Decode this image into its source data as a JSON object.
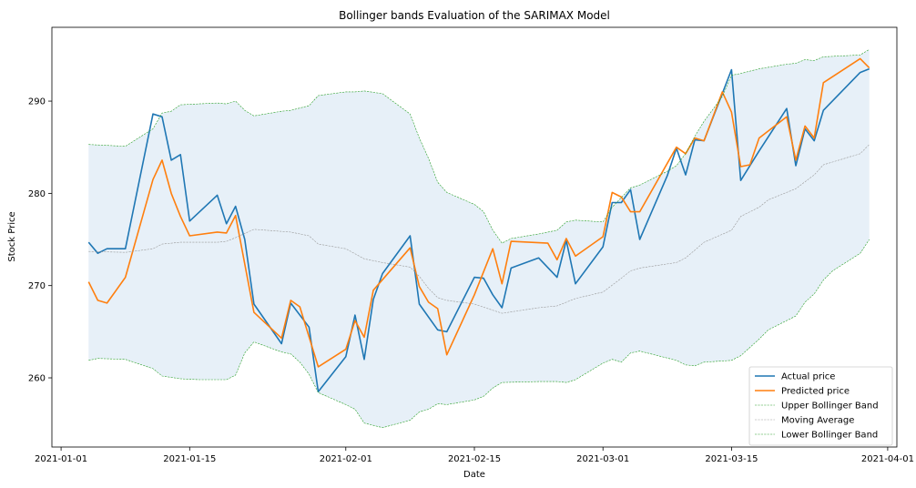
{
  "chart_data": {
    "type": "line",
    "title": "Bollinger bands Evaluation of the SARIMAX  Model",
    "xlabel": "Date",
    "ylabel": "Stock Price",
    "xlim": [
      "2020-12-31",
      "2021-04-02"
    ],
    "ylim": [
      252.5,
      298
    ],
    "x_ticks": [
      {
        "date": "2021-01-01",
        "label": "2021-01-01"
      },
      {
        "date": "2021-01-15",
        "label": "2021-01-15"
      },
      {
        "date": "2021-02-01",
        "label": "2021-02-01"
      },
      {
        "date": "2021-02-15",
        "label": "2021-02-15"
      },
      {
        "date": "2021-03-01",
        "label": "2021-03-01"
      },
      {
        "date": "2021-03-15",
        "label": "2021-03-15"
      },
      {
        "date": "2021-04-01",
        "label": "2021-04-01"
      }
    ],
    "y_ticks": [
      260,
      270,
      280,
      290
    ],
    "grid": false,
    "legend_position": "lower-right",
    "band_fill_color": "#e7f0f8",
    "series": [
      {
        "name": "Actual price",
        "color": "#1f77b4",
        "style": "solid",
        "points": [
          [
            "2021-01-04",
            274.7
          ],
          [
            "2021-01-05",
            273.5
          ],
          [
            "2021-01-06",
            274.0
          ],
          [
            "2021-01-08",
            274.0
          ],
          [
            "2021-01-11",
            288.6
          ],
          [
            "2021-01-12",
            288.3
          ],
          [
            "2021-01-13",
            283.6
          ],
          [
            "2021-01-14",
            284.2
          ],
          [
            "2021-01-15",
            277.0
          ],
          [
            "2021-01-18",
            279.8
          ],
          [
            "2021-01-19",
            276.7
          ],
          [
            "2021-01-20",
            278.6
          ],
          [
            "2021-01-21",
            275.0
          ],
          [
            "2021-01-22",
            268.0
          ],
          [
            "2021-01-25",
            263.7
          ],
          [
            "2021-01-26",
            268.1
          ],
          [
            "2021-01-28",
            265.5
          ],
          [
            "2021-01-29",
            258.5
          ],
          [
            "2021-02-01",
            262.3
          ],
          [
            "2021-02-02",
            266.8
          ],
          [
            "2021-02-03",
            262.0
          ],
          [
            "2021-02-04",
            268.5
          ],
          [
            "2021-02-05",
            271.3
          ],
          [
            "2021-02-08",
            275.4
          ],
          [
            "2021-02-09",
            268.0
          ],
          [
            "2021-02-11",
            265.2
          ],
          [
            "2021-02-12",
            265.0
          ],
          [
            "2021-02-15",
            270.9
          ],
          [
            "2021-02-16",
            270.8
          ],
          [
            "2021-02-17",
            269.0
          ],
          [
            "2021-02-18",
            267.6
          ],
          [
            "2021-02-19",
            271.9
          ],
          [
            "2021-02-22",
            273.0
          ],
          [
            "2021-02-24",
            270.9
          ],
          [
            "2021-02-25",
            274.9
          ],
          [
            "2021-02-26",
            270.2
          ],
          [
            "2021-03-01",
            274.2
          ],
          [
            "2021-03-02",
            279.0
          ],
          [
            "2021-03-03",
            279.0
          ],
          [
            "2021-03-04",
            280.4
          ],
          [
            "2021-03-05",
            275.0
          ],
          [
            "2021-03-08",
            281.9
          ],
          [
            "2021-03-09",
            284.9
          ],
          [
            "2021-03-10",
            282.0
          ],
          [
            "2021-03-11",
            285.8
          ],
          [
            "2021-03-12",
            285.7
          ],
          [
            "2021-03-15",
            293.4
          ],
          [
            "2021-03-16",
            281.4
          ],
          [
            "2021-03-18",
            284.6
          ],
          [
            "2021-03-21",
            289.2
          ],
          [
            "2021-03-22",
            283.0
          ],
          [
            "2021-03-23",
            287.0
          ],
          [
            "2021-03-24",
            285.7
          ],
          [
            "2021-03-25",
            289.0
          ],
          [
            "2021-03-29",
            293.1
          ],
          [
            "2021-03-30",
            293.5
          ]
        ]
      },
      {
        "name": "Predicted price",
        "color": "#ff7f0e",
        "style": "solid",
        "points": [
          [
            "2021-01-04",
            270.4
          ],
          [
            "2021-01-05",
            268.4
          ],
          [
            "2021-01-06",
            268.1
          ],
          [
            "2021-01-08",
            270.9
          ],
          [
            "2021-01-11",
            281.5
          ],
          [
            "2021-01-12",
            283.6
          ],
          [
            "2021-01-13",
            280.0
          ],
          [
            "2021-01-14",
            277.5
          ],
          [
            "2021-01-15",
            275.4
          ],
          [
            "2021-01-18",
            275.8
          ],
          [
            "2021-01-19",
            275.7
          ],
          [
            "2021-01-20",
            277.6
          ],
          [
            "2021-01-22",
            267.1
          ],
          [
            "2021-01-25",
            264.3
          ],
          [
            "2021-01-26",
            268.4
          ],
          [
            "2021-01-27",
            267.7
          ],
          [
            "2021-01-29",
            261.2
          ],
          [
            "2021-02-01",
            263.1
          ],
          [
            "2021-02-02",
            266.2
          ],
          [
            "2021-02-03",
            264.4
          ],
          [
            "2021-02-04",
            269.5
          ],
          [
            "2021-02-08",
            274.1
          ],
          [
            "2021-02-09",
            269.9
          ],
          [
            "2021-02-10",
            268.2
          ],
          [
            "2021-02-11",
            267.5
          ],
          [
            "2021-02-12",
            262.5
          ],
          [
            "2021-02-15",
            269.0
          ],
          [
            "2021-02-17",
            274.0
          ],
          [
            "2021-02-18",
            270.2
          ],
          [
            "2021-02-19",
            274.8
          ],
          [
            "2021-02-23",
            274.6
          ],
          [
            "2021-02-24",
            272.8
          ],
          [
            "2021-02-25",
            275.1
          ],
          [
            "2021-02-26",
            273.2
          ],
          [
            "2021-03-01",
            275.3
          ],
          [
            "2021-03-02",
            280.1
          ],
          [
            "2021-03-03",
            279.6
          ],
          [
            "2021-03-04",
            278.0
          ],
          [
            "2021-03-05",
            278.0
          ],
          [
            "2021-03-09",
            285.0
          ],
          [
            "2021-03-10",
            284.3
          ],
          [
            "2021-03-11",
            286.0
          ],
          [
            "2021-03-12",
            285.7
          ],
          [
            "2021-03-14",
            291.0
          ],
          [
            "2021-03-15",
            288.8
          ],
          [
            "2021-03-16",
            282.9
          ],
          [
            "2021-03-17",
            283.1
          ],
          [
            "2021-03-18",
            286.0
          ],
          [
            "2021-03-21",
            288.3
          ],
          [
            "2021-03-22",
            283.6
          ],
          [
            "2021-03-23",
            287.3
          ],
          [
            "2021-03-24",
            286.0
          ],
          [
            "2021-03-25",
            292.0
          ],
          [
            "2021-03-29",
            294.6
          ],
          [
            "2021-03-30",
            293.6
          ]
        ]
      },
      {
        "name": "Upper Bollinger Band",
        "color": "#2ca02c",
        "style": "dashed",
        "points": [
          [
            "2021-01-04",
            285.3
          ],
          [
            "2021-01-06",
            285.2
          ],
          [
            "2021-01-08",
            285.1
          ],
          [
            "2021-01-11",
            287.0
          ],
          [
            "2021-01-12",
            288.7
          ],
          [
            "2021-01-13",
            288.9
          ],
          [
            "2021-01-14",
            289.6
          ],
          [
            "2021-01-16",
            289.7
          ],
          [
            "2021-01-18",
            289.8
          ],
          [
            "2021-01-19",
            289.7
          ],
          [
            "2021-01-20",
            290.0
          ],
          [
            "2021-01-21",
            289.0
          ],
          [
            "2021-01-22",
            288.4
          ],
          [
            "2021-01-25",
            288.9
          ],
          [
            "2021-01-26",
            289.0
          ],
          [
            "2021-01-28",
            289.5
          ],
          [
            "2021-01-29",
            290.6
          ],
          [
            "2021-02-01",
            291.0
          ],
          [
            "2021-02-02",
            291.0
          ],
          [
            "2021-02-03",
            291.1
          ],
          [
            "2021-02-05",
            290.8
          ],
          [
            "2021-02-08",
            288.6
          ],
          [
            "2021-02-09",
            286.0
          ],
          [
            "2021-02-10",
            283.8
          ],
          [
            "2021-02-11",
            281.2
          ],
          [
            "2021-02-12",
            280.1
          ],
          [
            "2021-02-15",
            278.8
          ],
          [
            "2021-02-16",
            278.0
          ],
          [
            "2021-02-17",
            276.0
          ],
          [
            "2021-02-18",
            274.6
          ],
          [
            "2021-02-19",
            275.1
          ],
          [
            "2021-02-22",
            275.6
          ],
          [
            "2021-02-24",
            276.0
          ],
          [
            "2021-02-25",
            276.9
          ],
          [
            "2021-02-26",
            277.1
          ],
          [
            "2021-03-01",
            276.9
          ],
          [
            "2021-03-02",
            278.5
          ],
          [
            "2021-03-04",
            280.6
          ],
          [
            "2021-03-05",
            280.9
          ],
          [
            "2021-03-08",
            282.4
          ],
          [
            "2021-03-09",
            283.0
          ],
          [
            "2021-03-10",
            284.3
          ],
          [
            "2021-03-11",
            286.2
          ],
          [
            "2021-03-12",
            287.8
          ],
          [
            "2021-03-14",
            290.5
          ],
          [
            "2021-03-15",
            292.8
          ],
          [
            "2021-03-16",
            293.0
          ],
          [
            "2021-03-18",
            293.5
          ],
          [
            "2021-03-21",
            294.0
          ],
          [
            "2021-03-22",
            294.1
          ],
          [
            "2021-03-23",
            294.5
          ],
          [
            "2021-03-24",
            294.4
          ],
          [
            "2021-03-25",
            294.8
          ],
          [
            "2021-03-29",
            295.0
          ],
          [
            "2021-03-30",
            295.6
          ]
        ]
      },
      {
        "name": "Moving Average",
        "color": "#999999",
        "style": "dashed",
        "points": [
          [
            "2021-01-04",
            273.7
          ],
          [
            "2021-01-08",
            273.6
          ],
          [
            "2021-01-11",
            274.0
          ],
          [
            "2021-01-12",
            274.5
          ],
          [
            "2021-01-14",
            274.7
          ],
          [
            "2021-01-18",
            274.7
          ],
          [
            "2021-01-19",
            274.8
          ],
          [
            "2021-01-20",
            275.2
          ],
          [
            "2021-01-22",
            276.1
          ],
          [
            "2021-01-26",
            275.8
          ],
          [
            "2021-01-28",
            275.4
          ],
          [
            "2021-01-29",
            274.5
          ],
          [
            "2021-02-01",
            274.0
          ],
          [
            "2021-02-03",
            272.9
          ],
          [
            "2021-02-05",
            272.5
          ],
          [
            "2021-02-08",
            272.0
          ],
          [
            "2021-02-09",
            271.0
          ],
          [
            "2021-02-10",
            269.7
          ],
          [
            "2021-02-11",
            268.7
          ],
          [
            "2021-02-12",
            268.4
          ],
          [
            "2021-02-15",
            268.0
          ],
          [
            "2021-02-18",
            267.0
          ],
          [
            "2021-02-22",
            267.6
          ],
          [
            "2021-02-24",
            267.8
          ],
          [
            "2021-02-26",
            268.6
          ],
          [
            "2021-03-01",
            269.3
          ],
          [
            "2021-03-03",
            270.8
          ],
          [
            "2021-03-04",
            271.6
          ],
          [
            "2021-03-05",
            271.9
          ],
          [
            "2021-03-09",
            272.5
          ],
          [
            "2021-03-10",
            273.0
          ],
          [
            "2021-03-12",
            274.7
          ],
          [
            "2021-03-15",
            276.0
          ],
          [
            "2021-03-16",
            277.5
          ],
          [
            "2021-03-18",
            278.5
          ],
          [
            "2021-03-19",
            279.3
          ],
          [
            "2021-03-22",
            280.5
          ],
          [
            "2021-03-24",
            282.0
          ],
          [
            "2021-03-25",
            283.1
          ],
          [
            "2021-03-29",
            284.3
          ],
          [
            "2021-03-30",
            285.3
          ]
        ]
      },
      {
        "name": "Lower Bollinger Band",
        "color": "#2ca02c",
        "style": "dashed",
        "points": [
          [
            "2021-01-04",
            261.9
          ],
          [
            "2021-01-05",
            262.1
          ],
          [
            "2021-01-08",
            262.0
          ],
          [
            "2021-01-11",
            261.0
          ],
          [
            "2021-01-12",
            260.2
          ],
          [
            "2021-01-14",
            259.9
          ],
          [
            "2021-01-16",
            259.8
          ],
          [
            "2021-01-18",
            259.8
          ],
          [
            "2021-01-19",
            259.8
          ],
          [
            "2021-01-20",
            260.3
          ],
          [
            "2021-01-21",
            262.7
          ],
          [
            "2021-01-22",
            263.9
          ],
          [
            "2021-01-25",
            262.8
          ],
          [
            "2021-01-26",
            262.6
          ],
          [
            "2021-01-27",
            261.7
          ],
          [
            "2021-01-28",
            260.4
          ],
          [
            "2021-01-29",
            258.4
          ],
          [
            "2021-02-01",
            257.1
          ],
          [
            "2021-02-02",
            256.6
          ],
          [
            "2021-02-03",
            255.1
          ],
          [
            "2021-02-05",
            254.6
          ],
          [
            "2021-02-08",
            255.4
          ],
          [
            "2021-02-09",
            256.3
          ],
          [
            "2021-02-10",
            256.6
          ],
          [
            "2021-02-11",
            257.2
          ],
          [
            "2021-02-12",
            257.1
          ],
          [
            "2021-02-15",
            257.6
          ],
          [
            "2021-02-16",
            258.0
          ],
          [
            "2021-02-17",
            258.9
          ],
          [
            "2021-02-18",
            259.5
          ],
          [
            "2021-02-22",
            259.6
          ],
          [
            "2021-02-24",
            259.6
          ],
          [
            "2021-02-25",
            259.5
          ],
          [
            "2021-02-26",
            259.8
          ],
          [
            "2021-03-01",
            261.6
          ],
          [
            "2021-03-02",
            262.0
          ],
          [
            "2021-03-03",
            261.7
          ],
          [
            "2021-03-04",
            262.7
          ],
          [
            "2021-03-05",
            262.9
          ],
          [
            "2021-03-09",
            261.9
          ],
          [
            "2021-03-10",
            261.4
          ],
          [
            "2021-03-11",
            261.3
          ],
          [
            "2021-03-12",
            261.7
          ],
          [
            "2021-03-15",
            261.9
          ],
          [
            "2021-03-16",
            262.4
          ],
          [
            "2021-03-17",
            263.3
          ],
          [
            "2021-03-18",
            264.2
          ],
          [
            "2021-03-19",
            265.2
          ],
          [
            "2021-03-22",
            266.7
          ],
          [
            "2021-03-23",
            268.2
          ],
          [
            "2021-03-24",
            269.1
          ],
          [
            "2021-03-25",
            270.6
          ],
          [
            "2021-03-26",
            271.6
          ],
          [
            "2021-03-29",
            273.5
          ],
          [
            "2021-03-30",
            275.0
          ]
        ]
      }
    ]
  }
}
